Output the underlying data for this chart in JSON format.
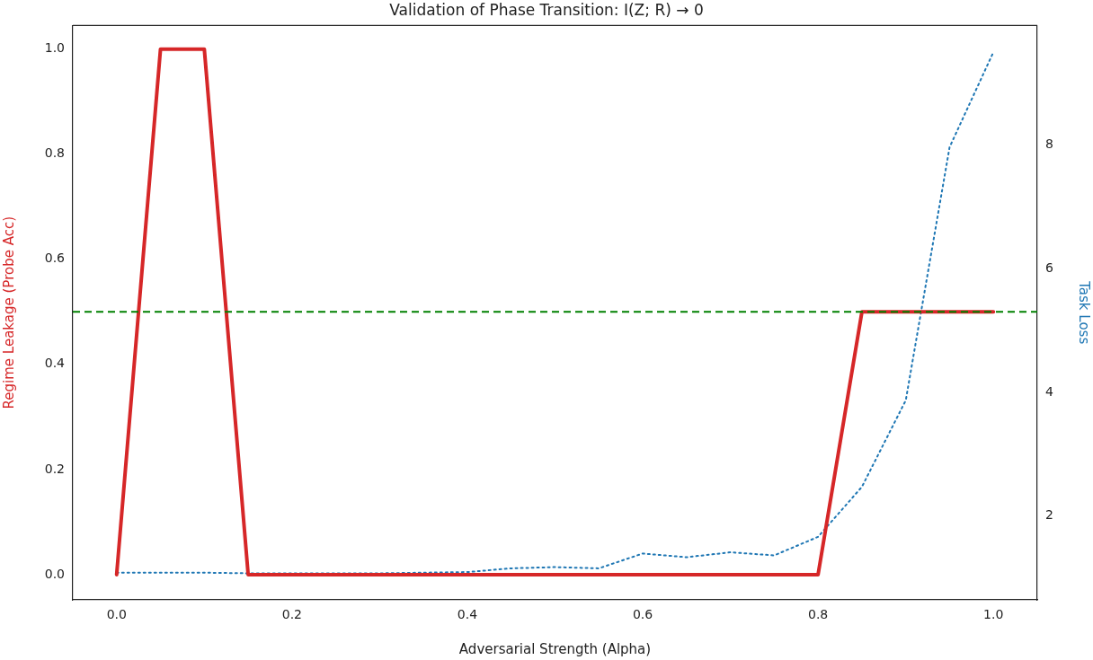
{
  "chart_data": {
    "type": "line",
    "title": "Validation of Phase Transition: I(Z; R) → 0",
    "xlabel": "Adversarial Strength (Alpha)",
    "ylabel": "Regime Leakage (Probe Acc)",
    "y2label": "Task Loss",
    "x": [
      0,
      0.05,
      0.1,
      0.15,
      0.2,
      0.25,
      0.3,
      0.35,
      0.4,
      0.45,
      0.5,
      0.55,
      0.6,
      0.65,
      0.7,
      0.75,
      0.8,
      0.85,
      0.9,
      0.95,
      1.0
    ],
    "series": [
      {
        "color": "#d62728",
        "values": [
          0,
          1,
          1,
          0,
          0,
          0,
          0,
          0,
          0,
          0,
          0,
          0,
          0,
          0,
          0,
          0,
          0,
          0.5,
          0.5,
          0.5,
          0.5
        ]
      },
      {
        "color": "#1f77b4",
        "axis": "y2",
        "line_style": "dotted",
        "values": [
          1.08,
          1.08,
          1.08,
          1.07,
          1.07,
          1.07,
          1.07,
          1.08,
          1.09,
          1.15,
          1.17,
          1.15,
          1.39,
          1.33,
          1.41,
          1.36,
          1.66,
          2.47,
          3.87,
          7.97,
          9.51
        ]
      }
    ],
    "xlim": [
      -0.05,
      1.05
    ],
    "xticks": [
      {
        "value": 0,
        "label": "0.0"
      },
      0.2,
      0.4,
      0.6,
      0.8,
      {
        "value": 1,
        "label": "1.0"
      }
    ],
    "ylim": [
      -0.048,
      1.045
    ],
    "yticks": [
      {
        "value": 0,
        "label": "0.0"
      },
      0.2,
      0.4,
      0.6,
      0.8,
      {
        "value": 1,
        "label": "1.0"
      }
    ],
    "y2lim": [
      0.64,
      9.94
    ],
    "y2ticks": [
      2,
      4,
      6,
      8
    ],
    "ref_lines": [
      {
        "axis": "y",
        "value": 0.5,
        "color": "#008000",
        "line_style": "dashed"
      }
    ],
    "grid": false,
    "legend": false
  }
}
